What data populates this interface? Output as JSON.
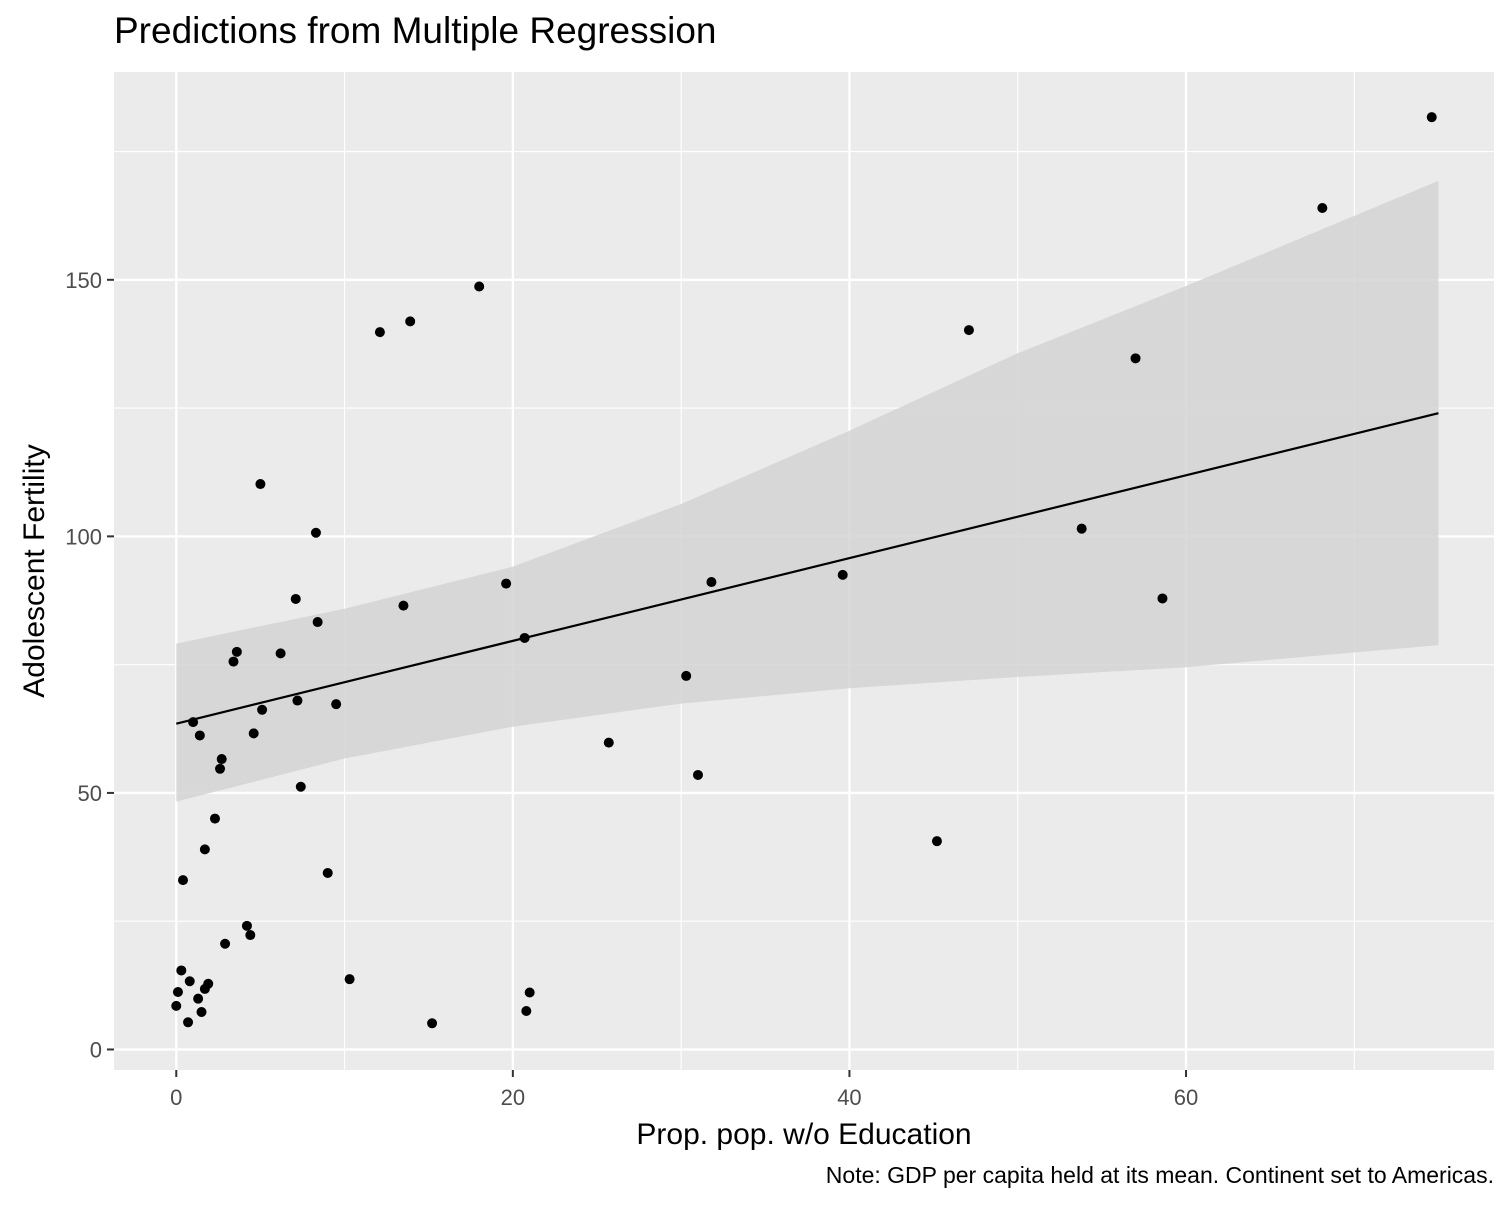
{
  "chart_data": {
    "type": "scatter",
    "title": "Predictions from Multiple Regression",
    "xlabel": "Prop. pop. w/o Education",
    "ylabel": "Adolescent Fertility",
    "caption": "Note: GDP per capita held at its mean. Continent set to Americas.",
    "xlim": [
      -3.7,
      78.3
    ],
    "ylim": [
      -4,
      190.5
    ],
    "x_ticks": [
      0,
      20,
      40,
      60
    ],
    "x_tick_labels": [
      "0",
      "20",
      "40",
      "60"
    ],
    "y_ticks": [
      0,
      50,
      100,
      150
    ],
    "y_tick_labels": [
      "0",
      "50",
      "100",
      "150"
    ],
    "x_minor_ticks": [
      10,
      30,
      50,
      70
    ],
    "y_minor_ticks": [
      25,
      75,
      125,
      175
    ],
    "grid": true,
    "legend": "none",
    "panel_background": "#ebebeb",
    "grid_color": "#ffffff",
    "point_color": "#000000",
    "line_color": "#000000",
    "band_color": "#d3d3d3",
    "points": [
      {
        "x": 0.0,
        "y": 8.5
      },
      {
        "x": 0.1,
        "y": 11.2
      },
      {
        "x": 0.3,
        "y": 15.4
      },
      {
        "x": 0.4,
        "y": 33.0
      },
      {
        "x": 0.7,
        "y": 5.3
      },
      {
        "x": 0.8,
        "y": 13.3
      },
      {
        "x": 1.0,
        "y": 63.8
      },
      {
        "x": 1.3,
        "y": 9.9
      },
      {
        "x": 1.4,
        "y": 61.2
      },
      {
        "x": 1.5,
        "y": 7.3
      },
      {
        "x": 1.7,
        "y": 11.8
      },
      {
        "x": 1.7,
        "y": 39.0
      },
      {
        "x": 1.9,
        "y": 12.8
      },
      {
        "x": 2.3,
        "y": 45.0
      },
      {
        "x": 2.6,
        "y": 54.7
      },
      {
        "x": 2.7,
        "y": 56.6
      },
      {
        "x": 2.9,
        "y": 20.6
      },
      {
        "x": 3.4,
        "y": 75.6
      },
      {
        "x": 3.6,
        "y": 77.5
      },
      {
        "x": 4.2,
        "y": 24.1
      },
      {
        "x": 4.4,
        "y": 22.3
      },
      {
        "x": 4.6,
        "y": 61.6
      },
      {
        "x": 5.0,
        "y": 110.2
      },
      {
        "x": 5.1,
        "y": 66.2
      },
      {
        "x": 6.2,
        "y": 77.2
      },
      {
        "x": 7.1,
        "y": 87.8
      },
      {
        "x": 7.2,
        "y": 68.0
      },
      {
        "x": 7.4,
        "y": 51.2
      },
      {
        "x": 8.3,
        "y": 100.7
      },
      {
        "x": 8.4,
        "y": 83.3
      },
      {
        "x": 9.0,
        "y": 34.4
      },
      {
        "x": 9.5,
        "y": 67.3
      },
      {
        "x": 10.3,
        "y": 13.7
      },
      {
        "x": 12.1,
        "y": 139.8
      },
      {
        "x": 13.5,
        "y": 86.5
      },
      {
        "x": 13.9,
        "y": 141.9
      },
      {
        "x": 15.2,
        "y": 5.1
      },
      {
        "x": 18.0,
        "y": 148.7
      },
      {
        "x": 19.6,
        "y": 90.8
      },
      {
        "x": 20.7,
        "y": 80.2
      },
      {
        "x": 20.8,
        "y": 7.5
      },
      {
        "x": 21.0,
        "y": 11.1
      },
      {
        "x": 25.7,
        "y": 59.8
      },
      {
        "x": 30.3,
        "y": 72.8
      },
      {
        "x": 31.0,
        "y": 53.5
      },
      {
        "x": 31.8,
        "y": 91.1
      },
      {
        "x": 39.6,
        "y": 92.5
      },
      {
        "x": 45.2,
        "y": 40.6
      },
      {
        "x": 47.1,
        "y": 140.2
      },
      {
        "x": 53.8,
        "y": 101.5
      },
      {
        "x": 57.0,
        "y": 134.7
      },
      {
        "x": 58.6,
        "y": 87.9
      },
      {
        "x": 68.1,
        "y": 164.0
      },
      {
        "x": 74.6,
        "y": 181.7
      }
    ],
    "fit_line": {
      "x": [
        0,
        75
      ],
      "y": [
        63.5,
        124.0
      ]
    },
    "confidence_band": {
      "x": [
        0,
        10,
        20,
        30,
        40,
        50,
        60,
        75
      ],
      "lower": [
        48.3,
        56.7,
        62.9,
        67.4,
        70.4,
        72.6,
        74.5,
        78.8
      ],
      "upper": [
        79.1,
        85.9,
        94.1,
        106.3,
        120.6,
        135.7,
        148.8,
        169.3
      ]
    }
  }
}
